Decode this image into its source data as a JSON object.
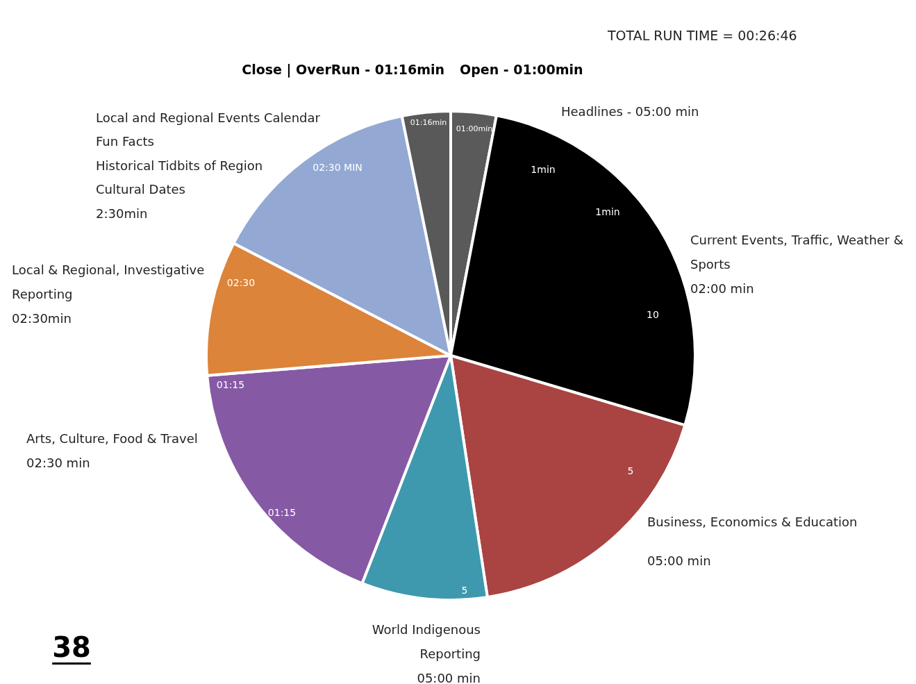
{
  "chart_data": {
    "type": "pie",
    "subtitle": "TOTAL RUN TIME = 00:26:46",
    "categories": [
      "Open - 01:00min",
      "Headlines - 05:00 min",
      "Business, Economics & Education\n\n05:00 min",
      "World Indigenous\nReporting\n05:00 min",
      "Arts, Culture, Food & Travel\n02:30 min",
      "Local & Regional, Investigative\nReporting\n02:30min",
      "Local and Regional Events Calendar\nFun Facts\nHistorical Tidbits of Region\nCultural Dates\n2:30min",
      "Close | OverRun - 01:16min"
    ],
    "values": [
      3.0,
      26.6,
      18.0,
      8.3,
      17.8,
      8.9,
      14.2,
      3.2
    ],
    "colors": [
      "#5a5a5a",
      "#000000",
      "#a94442",
      "#3e99ae",
      "#8659a5",
      "#dc843a",
      "#93a9d3",
      "#595959"
    ],
    "annotations": [
      "Current Events, Traffic, Weather &\nSports\n02:00 min",
      "01:00min",
      "10",
      "5",
      "5",
      "01:15",
      "01:15",
      "02:30",
      "02:30 MIN",
      "01:16min",
      "1min",
      "1min",
      "38"
    ],
    "legend": false
  }
}
